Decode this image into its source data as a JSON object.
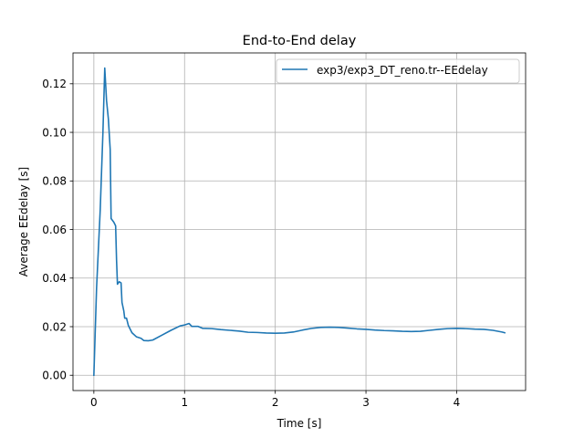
{
  "chart_data": {
    "type": "line",
    "title": "End-to-End delay",
    "xlabel": "Time [s]",
    "ylabel": "Average EEdelay [s]",
    "xlim": [
      -0.23,
      4.76
    ],
    "ylim": [
      -0.0063,
      0.1327
    ],
    "xticks": [
      {
        "value": 0,
        "label": "0"
      },
      {
        "value": 1,
        "label": "1"
      },
      {
        "value": 2,
        "label": "2"
      },
      {
        "value": 3,
        "label": "3"
      },
      {
        "value": 4,
        "label": "4"
      }
    ],
    "yticks": [
      {
        "value": 0.0,
        "label": "0.00"
      },
      {
        "value": 0.02,
        "label": "0.02"
      },
      {
        "value": 0.04,
        "label": "0.04"
      },
      {
        "value": 0.06,
        "label": "0.06"
      },
      {
        "value": 0.08,
        "label": "0.08"
      },
      {
        "value": 0.1,
        "label": "0.10"
      },
      {
        "value": 0.12,
        "label": "0.12"
      }
    ],
    "grid": true,
    "legend_position": "top-right",
    "series": [
      {
        "name": "exp3/exp3_DT_reno.tr--EEdelay",
        "color": "#1f77b4",
        "points": [
          [
            0.0,
            0.0
          ],
          [
            0.03,
            0.036
          ],
          [
            0.07,
            0.068
          ],
          [
            0.1,
            0.1
          ],
          [
            0.12,
            0.1265
          ],
          [
            0.14,
            0.113
          ],
          [
            0.16,
            0.1055
          ],
          [
            0.18,
            0.093
          ],
          [
            0.19,
            0.0645
          ],
          [
            0.22,
            0.063
          ],
          [
            0.24,
            0.0615
          ],
          [
            0.25,
            0.0475
          ],
          [
            0.26,
            0.0375
          ],
          [
            0.28,
            0.0385
          ],
          [
            0.3,
            0.038
          ],
          [
            0.31,
            0.03
          ],
          [
            0.33,
            0.0265
          ],
          [
            0.34,
            0.0235
          ],
          [
            0.36,
            0.0235
          ],
          [
            0.38,
            0.0205
          ],
          [
            0.42,
            0.0175
          ],
          [
            0.47,
            0.0158
          ],
          [
            0.52,
            0.0152
          ],
          [
            0.55,
            0.0143
          ],
          [
            0.6,
            0.0142
          ],
          [
            0.65,
            0.0145
          ],
          [
            0.75,
            0.0165
          ],
          [
            0.85,
            0.0185
          ],
          [
            0.95,
            0.0203
          ],
          [
            1.0,
            0.0207
          ],
          [
            1.05,
            0.0213
          ],
          [
            1.08,
            0.0201
          ],
          [
            1.15,
            0.0201
          ],
          [
            1.2,
            0.0193
          ],
          [
            1.3,
            0.0192
          ],
          [
            1.4,
            0.0188
          ],
          [
            1.5,
            0.0185
          ],
          [
            1.6,
            0.0182
          ],
          [
            1.7,
            0.0177
          ],
          [
            1.8,
            0.0176
          ],
          [
            1.9,
            0.0174
          ],
          [
            2.0,
            0.0173
          ],
          [
            2.1,
            0.0174
          ],
          [
            2.2,
            0.0178
          ],
          [
            2.3,
            0.0186
          ],
          [
            2.4,
            0.0193
          ],
          [
            2.5,
            0.0197
          ],
          [
            2.6,
            0.0198
          ],
          [
            2.7,
            0.0197
          ],
          [
            2.8,
            0.0194
          ],
          [
            2.9,
            0.0191
          ],
          [
            3.0,
            0.0189
          ],
          [
            3.1,
            0.0186
          ],
          [
            3.2,
            0.0184
          ],
          [
            3.3,
            0.0183
          ],
          [
            3.4,
            0.0181
          ],
          [
            3.5,
            0.018
          ],
          [
            3.6,
            0.0181
          ],
          [
            3.7,
            0.0185
          ],
          [
            3.8,
            0.0189
          ],
          [
            3.9,
            0.0192
          ],
          [
            4.0,
            0.0193
          ],
          [
            4.1,
            0.0192
          ],
          [
            4.2,
            0.019
          ],
          [
            4.3,
            0.0189
          ],
          [
            4.4,
            0.0185
          ],
          [
            4.5,
            0.0178
          ],
          [
            4.53,
            0.0175
          ]
        ]
      }
    ]
  }
}
